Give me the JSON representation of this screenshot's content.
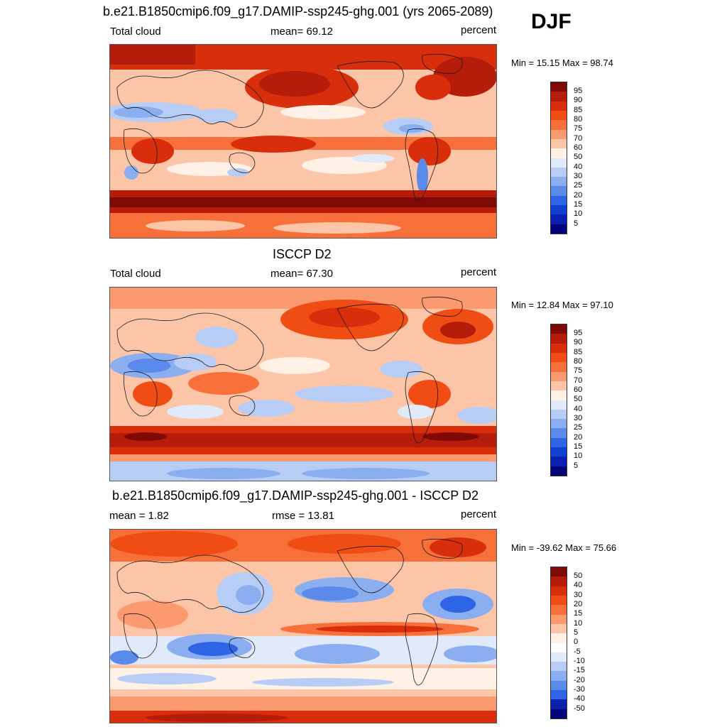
{
  "season": "DJF",
  "panels": [
    {
      "id": "model",
      "title": "b.e21.B1850cmip6.f09_g17.DAMIP-ssp245-ghg.001 (yrs 2065-2089)",
      "left_label": "Total cloud",
      "center_label": "mean=  69.12",
      "right_label": "percent",
      "minmax": "Min =  15.15 Max =  98.74",
      "cbar_labels": [
        "95",
        "90",
        "85",
        "80",
        "75",
        "70",
        "60",
        "50",
        "40",
        "30",
        "25",
        "20",
        "15",
        "10",
        "5"
      ],
      "style": "cloud"
    },
    {
      "id": "obs",
      "title": "ISCCP D2",
      "left_label": "Total cloud",
      "center_label": "mean=  67.30",
      "right_label": "percent",
      "minmax": "Min =  12.84 Max =  97.10",
      "cbar_labels": [
        "95",
        "90",
        "85",
        "80",
        "75",
        "70",
        "60",
        "50",
        "40",
        "30",
        "25",
        "20",
        "15",
        "10",
        "5"
      ],
      "style": "cloud"
    },
    {
      "id": "diff",
      "title": "b.e21.B1850cmip6.f09_g17.DAMIP-ssp245-ghg.001 - ISCCP D2",
      "left_label": "mean =   1.82",
      "center_label": "rmse =  13.81",
      "right_label": "percent",
      "minmax": "Min = -39.62 Max =  75.66",
      "cbar_labels": [
        "50",
        "40",
        "30",
        "20",
        "15",
        "10",
        "5",
        "0",
        "-5",
        "-10",
        "-15",
        "-20",
        "-30",
        "-40",
        "-50"
      ],
      "style": "diff"
    }
  ],
  "colors": {
    "cloud_scale": [
      "#7f0a05",
      "#b51d0a",
      "#d92e0b",
      "#f04d15",
      "#f7703a",
      "#fb9a6e",
      "#fdc5a8",
      "#fff1e6",
      "#e0eafb",
      "#b8cdf6",
      "#8aaef0",
      "#5a8aea",
      "#2e64e6",
      "#1040d2",
      "#0a20b0",
      "#03037a"
    ],
    "diff_scale": [
      "#7f0a05",
      "#b51d0a",
      "#d92e0b",
      "#f04d15",
      "#f7703a",
      "#fb9a6e",
      "#fdc5a8",
      "#fff1e6",
      "#ffffff",
      "#e0eafb",
      "#b8cdf6",
      "#8aaef0",
      "#5a8aea",
      "#2e64e6",
      "#0a20b0",
      "#03037a"
    ],
    "coastline": "#1a1a1a"
  }
}
